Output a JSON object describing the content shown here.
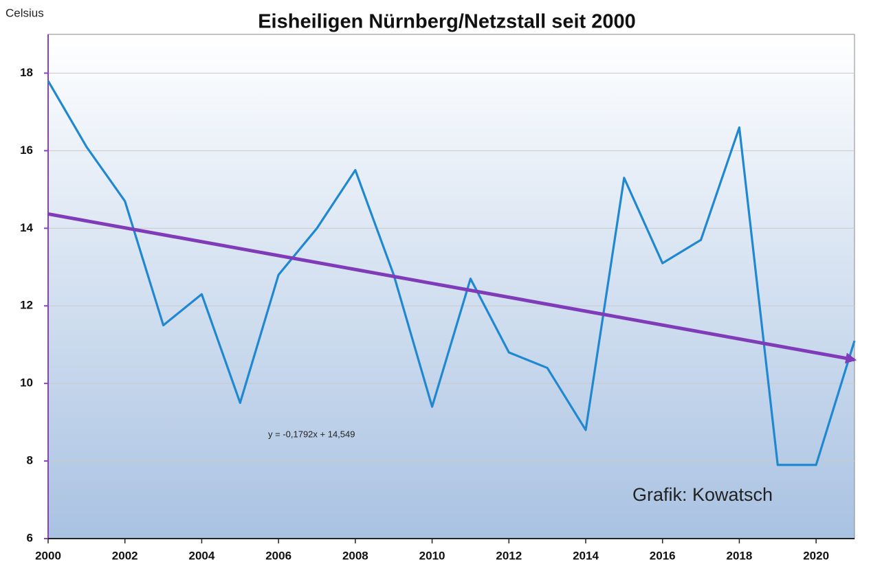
{
  "chart_data": {
    "type": "line",
    "title": "Eisheiligen Nürnberg/Netzstall seit 2000",
    "y_label": "Celsius",
    "annotations": [
      "y = -0,1792x + 14,549",
      "Grafik: Kowatsch"
    ],
    "x": [
      2000,
      2001,
      2002,
      2003,
      2004,
      2005,
      2006,
      2007,
      2008,
      2009,
      2010,
      2011,
      2012,
      2013,
      2014,
      2015,
      2016,
      2017,
      2018,
      2019,
      2020,
      2021
    ],
    "series": [
      {
        "color": "#1f88d0",
        "values": [
          17.8,
          16.1,
          14.7,
          11.5,
          12.3,
          9.5,
          12.8,
          14.0,
          15.5,
          12.8,
          9.4,
          12.7,
          10.8,
          10.4,
          8.8,
          15.3,
          13.1,
          13.7,
          16.6,
          7.9,
          7.9,
          11.1
        ]
      }
    ],
    "trend": {
      "color": "#7f3bb8",
      "x": [
        2000,
        2021
      ],
      "values": [
        14.37,
        10.61
      ]
    },
    "xlim": [
      2000,
      2021
    ],
    "xticks": [
      2000,
      2002,
      2004,
      2006,
      2008,
      2010,
      2012,
      2014,
      2016,
      2018,
      2020
    ],
    "ylim": [
      6,
      19
    ],
    "yticks": [
      6,
      8,
      10,
      12,
      14,
      16,
      18
    ],
    "grid": true
  }
}
